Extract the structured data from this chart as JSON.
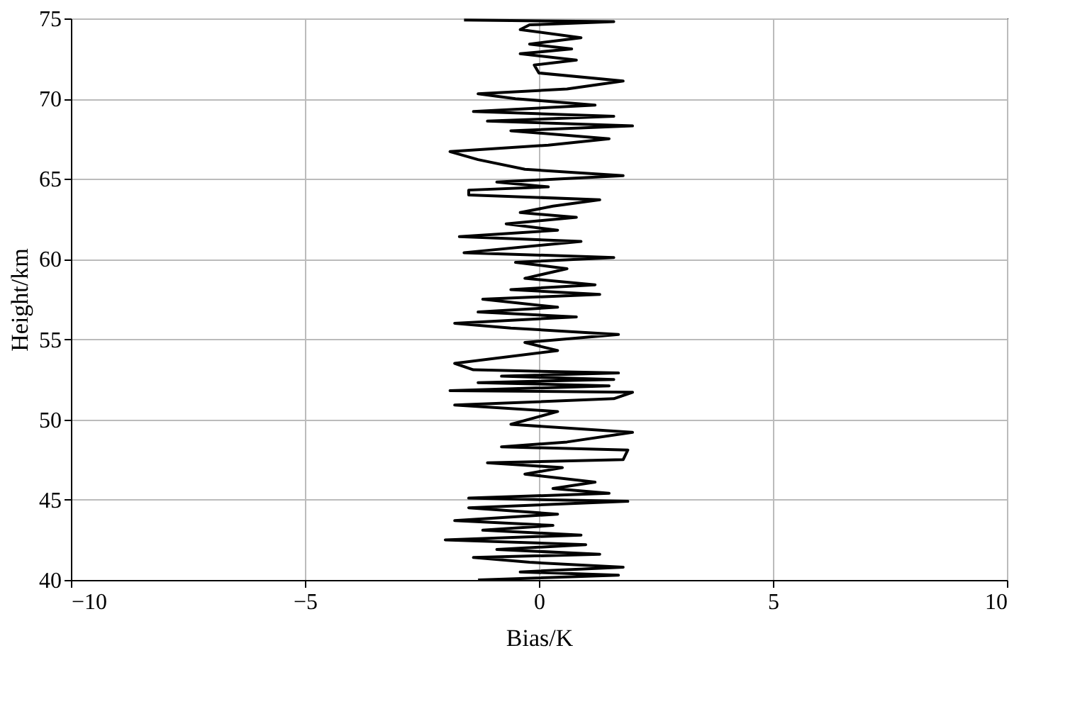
{
  "chart_data": {
    "type": "line",
    "xlabel": "Bias/K",
    "ylabel": "Height/km",
    "xlim": [
      -10,
      10
    ],
    "xticks": [
      -10,
      -5,
      0,
      5,
      10
    ],
    "ylim": [
      40,
      75
    ],
    "yticks": [
      40,
      45,
      50,
      55,
      60,
      65,
      70,
      75
    ],
    "grid": true,
    "series": [
      {
        "color": "#000000",
        "x": [
          -1.3,
          1.7,
          -0.4,
          1.8,
          -0.2,
          -1.4,
          1.3,
          -0.9,
          1.0,
          -2.0,
          0.9,
          -1.2,
          0.3,
          -1.8,
          0.4,
          -1.5,
          1.9,
          -1.5,
          1.5,
          0.3,
          1.2,
          -0.3,
          0.5,
          -1.1,
          1.8,
          1.9,
          -0.8,
          0.6,
          2.0,
          -0.6,
          0.4,
          -1.8,
          1.6,
          2.0,
          -1.9,
          1.5,
          -1.3,
          1.6,
          -0.8,
          1.7,
          -1.4,
          -1.8,
          0.4,
          -0.3,
          1.7,
          -0.6,
          -1.8,
          0.8,
          -1.3,
          0.4,
          -1.2,
          1.3,
          -0.6,
          1.2,
          -0.3,
          0.6,
          -0.5,
          1.6,
          -1.6,
          0.9,
          -1.7,
          0.4,
          -0.7,
          0.8,
          -0.4,
          0.3,
          1.3,
          -1.5,
          -1.5,
          0.2,
          -0.9,
          1.8,
          -0.3,
          -1.3,
          -1.9,
          0.2,
          1.5,
          -0.6,
          2.0,
          -1.1,
          1.6,
          -1.4,
          1.2,
          -0.5,
          -1.3,
          0.6,
          1.8,
          0.0,
          -0.1,
          0.8,
          -0.4,
          0.7,
          -0.2,
          0.9,
          -0.4,
          -0.2,
          1.6,
          -1.6
        ],
        "values": [
          40.0,
          40.3,
          40.5,
          40.8,
          41.1,
          41.4,
          41.6,
          41.9,
          42.2,
          42.5,
          42.8,
          43.1,
          43.4,
          43.7,
          44.1,
          44.5,
          44.9,
          45.1,
          45.4,
          45.7,
          46.1,
          46.6,
          47.0,
          47.3,
          47.5,
          48.1,
          48.3,
          48.6,
          49.2,
          49.7,
          50.5,
          50.9,
          51.3,
          51.7,
          51.8,
          52.1,
          52.3,
          52.5,
          52.7,
          52.9,
          53.1,
          53.5,
          54.3,
          54.8,
          55.3,
          55.7,
          56.0,
          56.4,
          56.7,
          57.0,
          57.5,
          57.8,
          58.1,
          58.4,
          58.8,
          59.4,
          59.8,
          60.1,
          60.4,
          61.1,
          61.4,
          61.8,
          62.2,
          62.6,
          62.9,
          63.3,
          63.7,
          64.0,
          64.3,
          64.5,
          64.8,
          65.2,
          65.6,
          66.2,
          66.7,
          67.1,
          67.5,
          68.0,
          68.3,
          68.6,
          68.9,
          69.2,
          69.6,
          70.0,
          70.3,
          70.6,
          71.1,
          71.6,
          72.1,
          72.4,
          72.8,
          73.1,
          73.4,
          73.8,
          74.3,
          74.6,
          74.8,
          74.9
        ]
      }
    ]
  }
}
